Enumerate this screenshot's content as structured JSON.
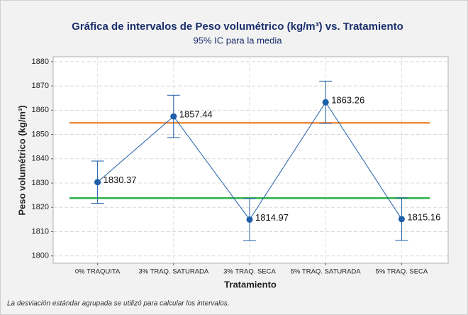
{
  "chart_data": {
    "type": "interval",
    "title": "Gráfica de intervalos de Peso volumétrico (kg/m³) vs. Tratamiento",
    "subtitle": "95% IC para la media",
    "x_label": "Tratamiento",
    "y_label": "Peso volumétrico (kg/m³)",
    "note": "La desviación estándar agrupada se utilizó para calcular los intervalos.",
    "categories": [
      "0% TRAQUITA",
      "3% TRAQ. SATURADA",
      "3% TRAQ. SECA",
      "5% TRAQ. SATURADA",
      "5% TRAQ. SECA"
    ],
    "values": [
      1830.37,
      1857.44,
      1814.97,
      1863.26,
      1815.16
    ],
    "errors": [
      8.7,
      8.7,
      8.7,
      8.7,
      8.7
    ],
    "color": "#1f5fa8",
    "reference_lines": [
      {
        "value": 1854.8,
        "color": "#ee8a3c"
      },
      {
        "value": 1823.8,
        "color": "#2fb34a"
      }
    ],
    "ylim": [
      1797,
      1882
    ],
    "yticks": [
      1800,
      1810,
      1820,
      1830,
      1840,
      1850,
      1860,
      1870,
      1880
    ],
    "grid": true
  }
}
